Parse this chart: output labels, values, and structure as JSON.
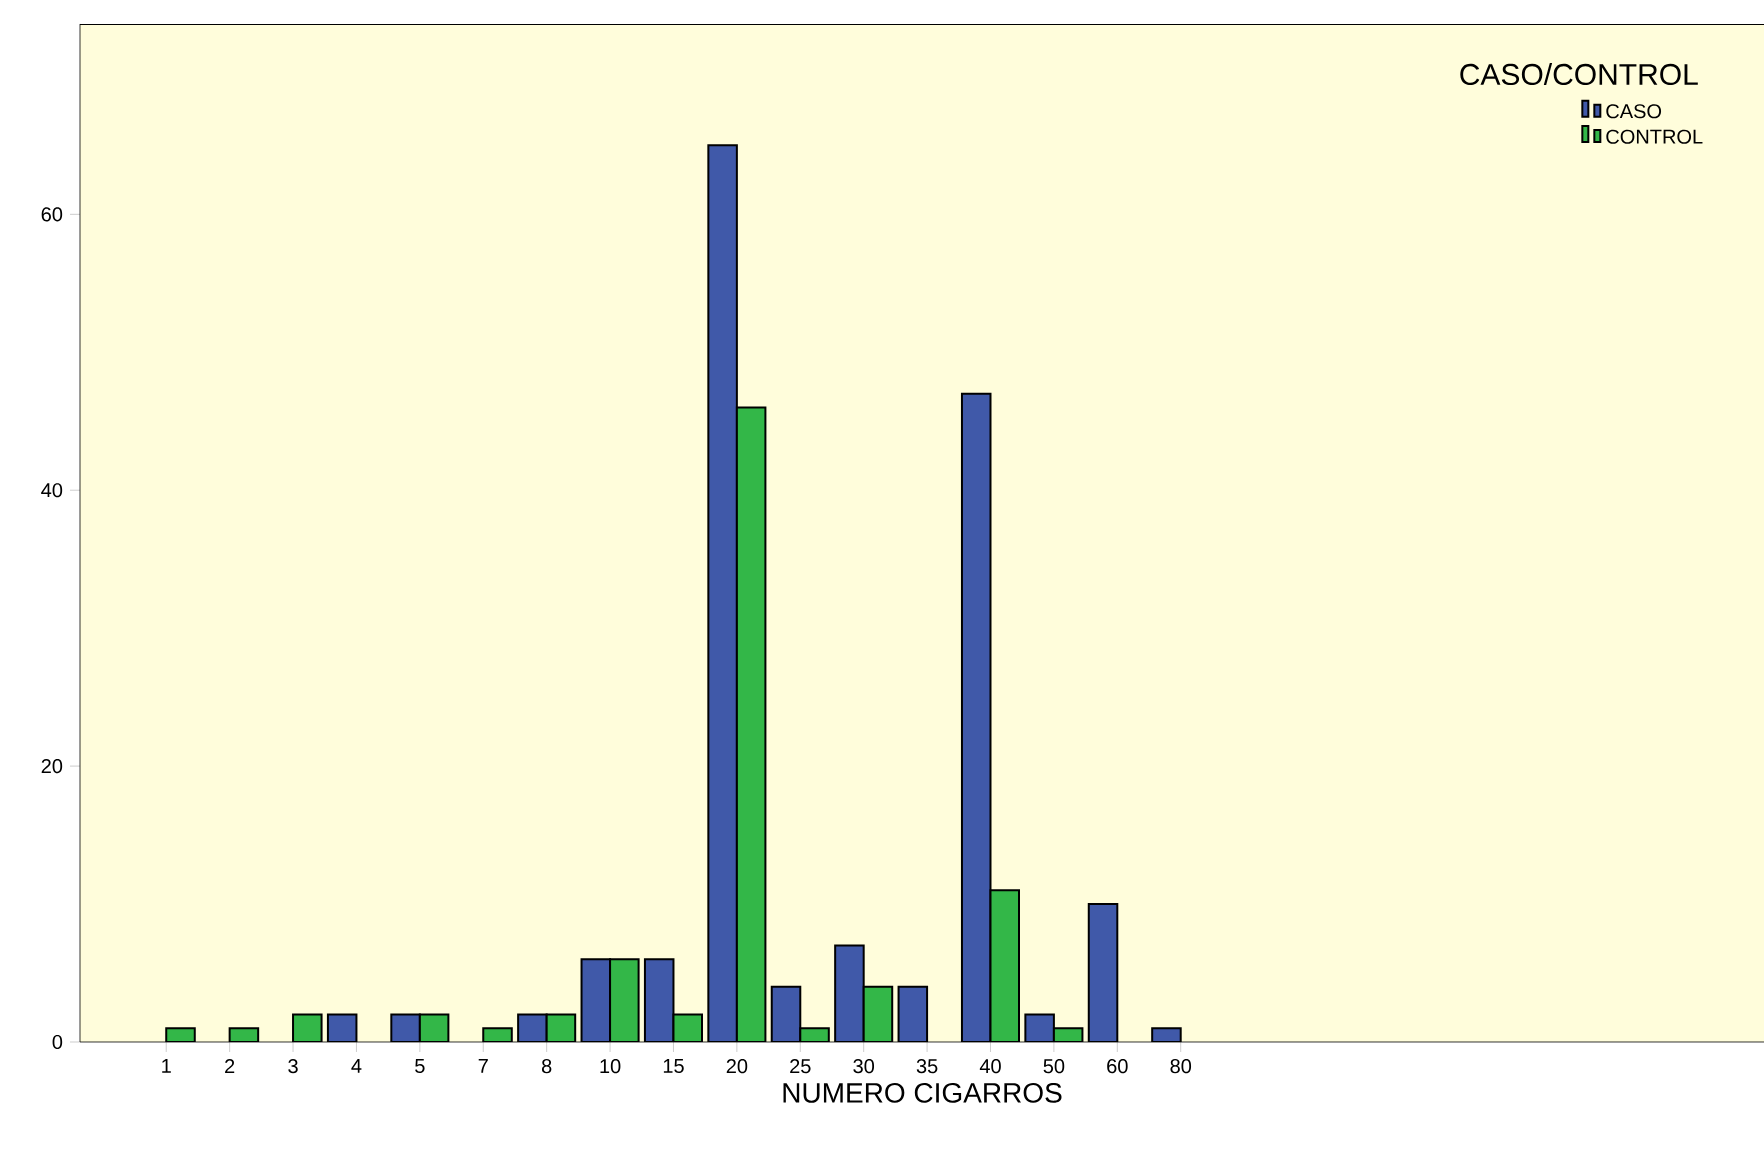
{
  "chart_data": {
    "type": "bar",
    "xlabel": "NUMERO CIGARROS",
    "legend_title": "CASO/CONTROL",
    "categories": [
      "1",
      "2",
      "3",
      "4",
      "5",
      "7",
      "8",
      "10",
      "15",
      "20",
      "25",
      "30",
      "35",
      "40",
      "50",
      "60",
      "80"
    ],
    "series": [
      {
        "name": "CASO",
        "color": "#4059a9",
        "values": [
          null,
          null,
          null,
          2,
          2,
          null,
          2,
          6,
          6,
          65,
          4,
          7,
          4,
          47,
          2,
          10,
          1
        ]
      },
      {
        "name": "CONTROL",
        "color": "#33b748",
        "values": [
          1,
          1,
          2,
          null,
          2,
          1,
          2,
          6,
          2,
          46,
          1,
          4,
          null,
          11,
          1,
          null,
          null
        ]
      }
    ],
    "ylim": [
      0,
      73.8
    ],
    "yticks": [
      0,
      20,
      40,
      60
    ],
    "grid": false,
    "legend": "top right"
  }
}
